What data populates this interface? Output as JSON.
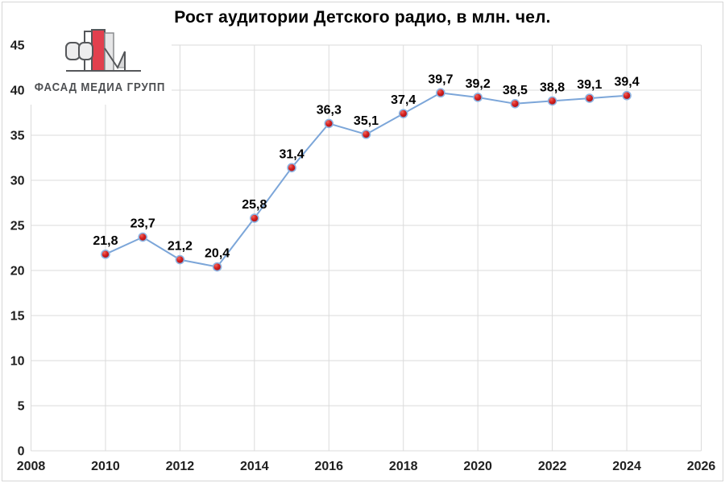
{
  "window": {
    "background": "#ffffff",
    "border_color": "#d6d6d6"
  },
  "logo": {
    "text": "ФАСАД МЕДИА ГРУПП",
    "colors": {
      "red": "#e2404e",
      "outline": "#55575a",
      "light_fill": "#ededee",
      "gray_fill": "#d8d8d9",
      "text": "#4d4f52"
    }
  },
  "chart_data": {
    "type": "line",
    "title": "Рост аудитории Детского радио, в млн. чел.",
    "x": [
      2010,
      2011,
      2012,
      2013,
      2014,
      2015,
      2016,
      2017,
      2018,
      2019,
      2020,
      2021,
      2022,
      2023,
      2024
    ],
    "values": [
      21.8,
      23.7,
      21.2,
      20.4,
      25.8,
      31.4,
      36.3,
      35.1,
      37.4,
      39.7,
      39.2,
      38.5,
      38.8,
      39.1,
      39.4
    ],
    "point_labels": [
      "21,8",
      "23,7",
      "21,2",
      "20,4",
      "25,8",
      "31,4",
      "36,3",
      "35,1",
      "37,4",
      "39,7",
      "39,2",
      "38,5",
      "38,8",
      "39,1",
      "39,4"
    ],
    "xlim": [
      2008,
      2026
    ],
    "ylim": [
      0,
      45
    ],
    "x_ticks": [
      2008,
      2010,
      2012,
      2014,
      2016,
      2018,
      2020,
      2022,
      2024,
      2026
    ],
    "y_ticks": [
      0,
      5,
      10,
      15,
      20,
      25,
      30,
      35,
      40,
      45
    ],
    "grid": true,
    "legend_position": "none",
    "colors": {
      "line": "#7ca6d9",
      "marker_ring": "#8db4e2",
      "marker_gradient": [
        "#f2685d",
        "#d6201f",
        "#990c12"
      ],
      "grid": "#dbdbdb",
      "tick_text": "#1f1f1f"
    }
  }
}
